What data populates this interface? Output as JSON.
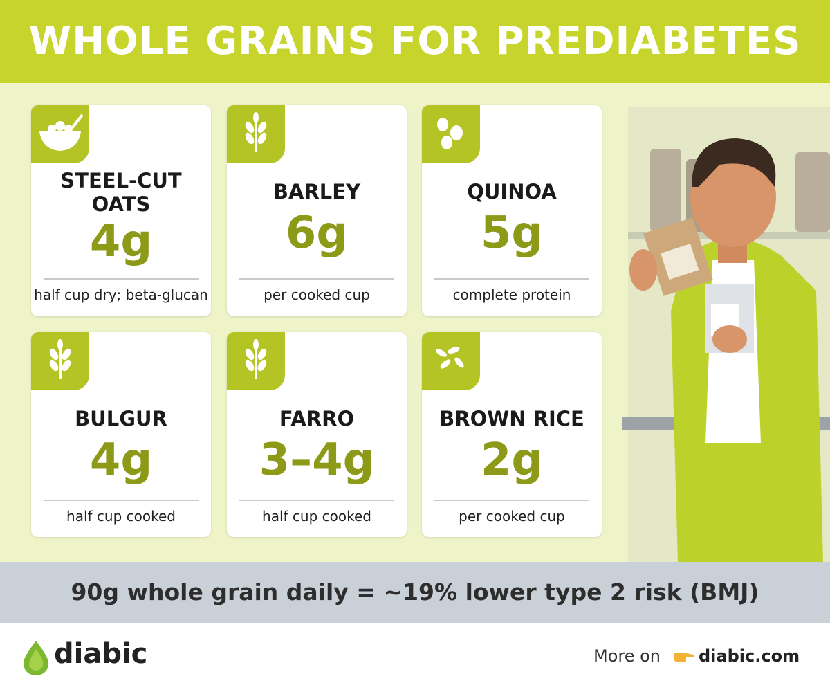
{
  "header": {
    "title": "WHOLE GRAINS FOR PREDIABETES"
  },
  "cards": [
    {
      "name": "STEEL-CUT OATS",
      "amount": "4g",
      "note": "half cup dry; beta-glucan"
    },
    {
      "name": "BARLEY",
      "amount": "6g",
      "note": "per cooked cup"
    },
    {
      "name": "QUINOA",
      "amount": "5g",
      "note": "complete protein"
    },
    {
      "name": "BULGUR",
      "amount": "4g",
      "note": "half cup cooked"
    },
    {
      "name": "FARRO",
      "amount": "3–4g",
      "note": "half cup cooked"
    },
    {
      "name": "BROWN RICE",
      "amount": "2g",
      "note": "per cooked cup"
    }
  ],
  "banner": {
    "text": "90g whole grain daily = ~19% lower type 2 risk (BMJ)"
  },
  "footer": {
    "brand": "diabic",
    "more_on": "More on",
    "link": "diabic.com"
  }
}
